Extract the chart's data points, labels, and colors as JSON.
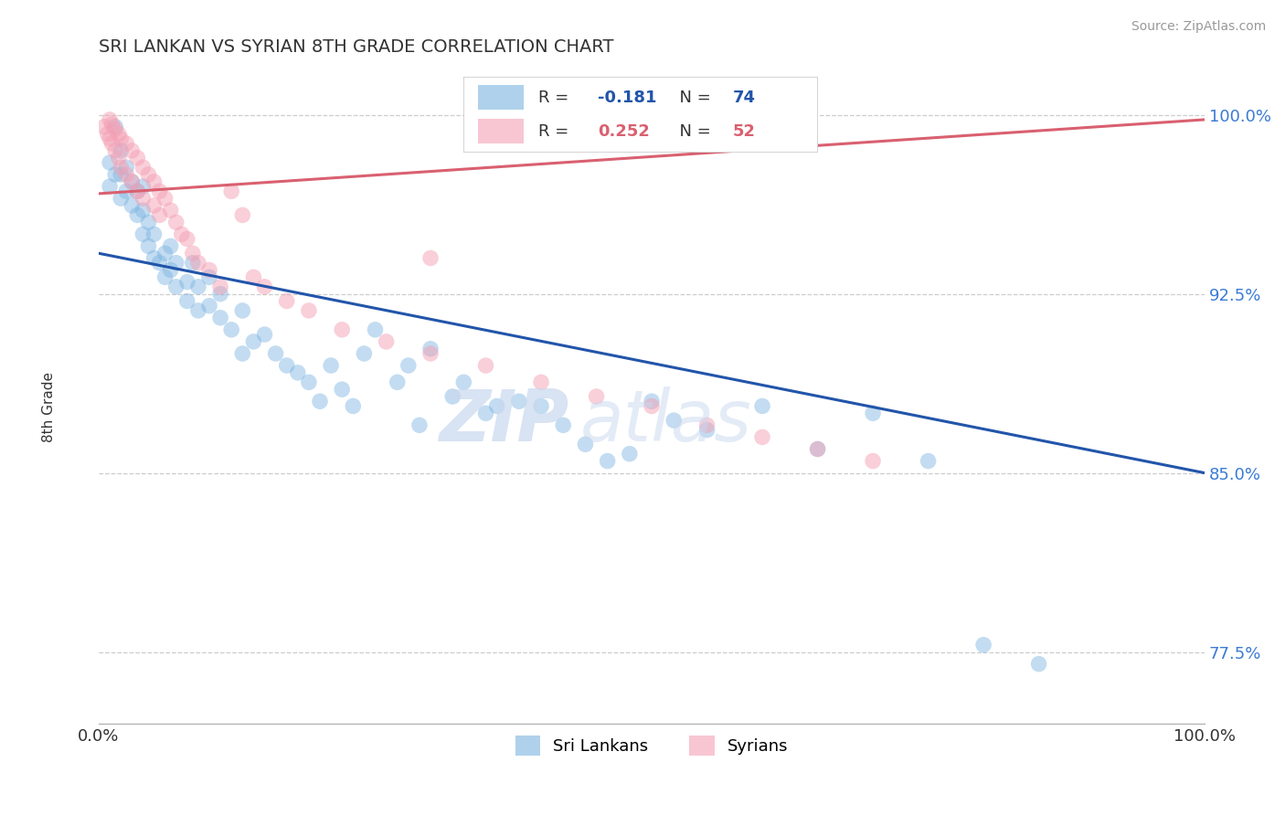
{
  "title": "SRI LANKAN VS SYRIAN 8TH GRADE CORRELATION CHART",
  "source": "Source: ZipAtlas.com",
  "ylabel": "8th Grade",
  "ytick_labels": [
    "77.5%",
    "85.0%",
    "92.5%",
    "100.0%"
  ],
  "ytick_values": [
    0.775,
    0.85,
    0.925,
    1.0
  ],
  "xlim": [
    0.0,
    1.0
  ],
  "ylim": [
    0.745,
    1.02
  ],
  "blue_color": "#7ab3e0",
  "pink_color": "#f4a0b4",
  "blue_line_color": "#2255aa",
  "pink_line_color": "#d96070",
  "legend_blue_r": "-0.181",
  "legend_blue_n": "74",
  "legend_pink_r": "0.252",
  "legend_pink_n": "52",
  "blue_line_x": [
    0.0,
    1.0
  ],
  "blue_line_y": [
    0.942,
    0.85
  ],
  "pink_line_x": [
    0.0,
    1.0
  ],
  "pink_line_y": [
    0.967,
    0.998
  ],
  "blue_points_x": [
    0.01,
    0.01,
    0.015,
    0.015,
    0.02,
    0.02,
    0.02,
    0.025,
    0.025,
    0.03,
    0.03,
    0.035,
    0.035,
    0.04,
    0.04,
    0.04,
    0.045,
    0.045,
    0.05,
    0.05,
    0.055,
    0.06,
    0.06,
    0.065,
    0.065,
    0.07,
    0.07,
    0.08,
    0.08,
    0.085,
    0.09,
    0.09,
    0.1,
    0.1,
    0.11,
    0.11,
    0.12,
    0.13,
    0.13,
    0.14,
    0.15,
    0.16,
    0.17,
    0.18,
    0.19,
    0.2,
    0.21,
    0.22,
    0.23,
    0.24,
    0.25,
    0.27,
    0.28,
    0.29,
    0.3,
    0.32,
    0.33,
    0.35,
    0.36,
    0.38,
    0.4,
    0.42,
    0.44,
    0.46,
    0.48,
    0.5,
    0.52,
    0.55,
    0.6,
    0.65,
    0.7,
    0.75,
    0.8,
    0.85
  ],
  "blue_points_y": [
    0.98,
    0.97,
    0.995,
    0.975,
    0.965,
    0.985,
    0.975,
    0.968,
    0.978,
    0.962,
    0.972,
    0.958,
    0.968,
    0.95,
    0.96,
    0.97,
    0.945,
    0.955,
    0.94,
    0.95,
    0.938,
    0.932,
    0.942,
    0.935,
    0.945,
    0.928,
    0.938,
    0.922,
    0.93,
    0.938,
    0.918,
    0.928,
    0.92,
    0.932,
    0.915,
    0.925,
    0.91,
    0.9,
    0.918,
    0.905,
    0.908,
    0.9,
    0.895,
    0.892,
    0.888,
    0.88,
    0.895,
    0.885,
    0.878,
    0.9,
    0.91,
    0.888,
    0.895,
    0.87,
    0.902,
    0.882,
    0.888,
    0.875,
    0.878,
    0.88,
    0.878,
    0.87,
    0.862,
    0.855,
    0.858,
    0.88,
    0.872,
    0.868,
    0.878,
    0.86,
    0.875,
    0.855,
    0.778,
    0.77
  ],
  "pink_points_x": [
    0.005,
    0.008,
    0.01,
    0.01,
    0.012,
    0.012,
    0.015,
    0.015,
    0.018,
    0.018,
    0.02,
    0.02,
    0.025,
    0.025,
    0.03,
    0.03,
    0.035,
    0.035,
    0.04,
    0.04,
    0.045,
    0.05,
    0.05,
    0.055,
    0.055,
    0.06,
    0.065,
    0.07,
    0.075,
    0.08,
    0.085,
    0.09,
    0.1,
    0.11,
    0.12,
    0.13,
    0.14,
    0.15,
    0.17,
    0.19,
    0.22,
    0.26,
    0.3,
    0.35,
    0.4,
    0.45,
    0.5,
    0.55,
    0.6,
    0.65,
    0.7,
    0.3
  ],
  "pink_points_y": [
    0.995,
    0.992,
    0.998,
    0.99,
    0.996,
    0.988,
    0.994,
    0.985,
    0.992,
    0.982,
    0.99,
    0.978,
    0.988,
    0.975,
    0.985,
    0.972,
    0.982,
    0.968,
    0.978,
    0.965,
    0.975,
    0.972,
    0.962,
    0.968,
    0.958,
    0.965,
    0.96,
    0.955,
    0.95,
    0.948,
    0.942,
    0.938,
    0.935,
    0.928,
    0.968,
    0.958,
    0.932,
    0.928,
    0.922,
    0.918,
    0.91,
    0.905,
    0.9,
    0.895,
    0.888,
    0.882,
    0.878,
    0.87,
    0.865,
    0.86,
    0.855,
    0.94
  ]
}
